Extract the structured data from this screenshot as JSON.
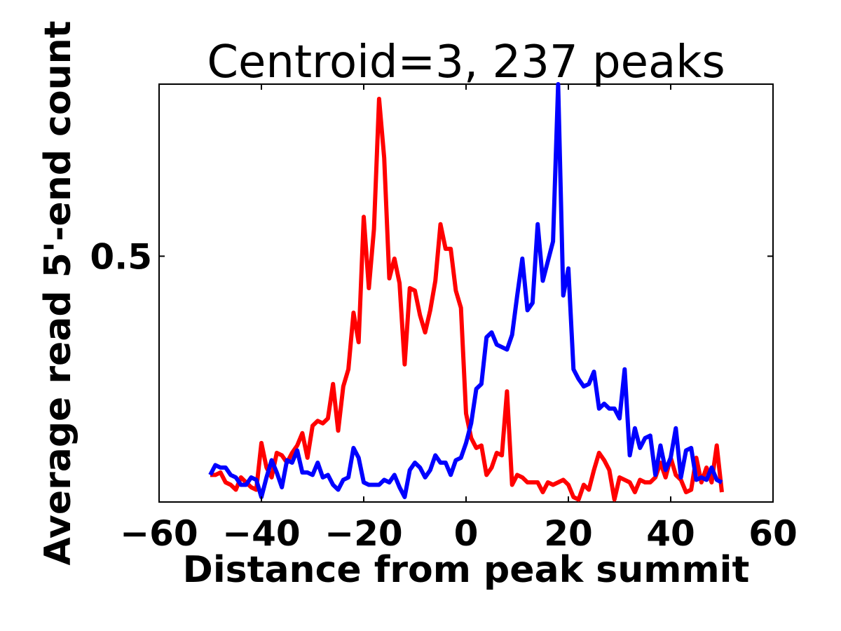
{
  "chart_data": {
    "type": "line",
    "title": "Centroid=3, 237 peaks",
    "xlabel": "Distance from peak summit",
    "ylabel": "Average read 5'-end count",
    "xlim": [
      -60,
      60
    ],
    "ylim": [
      0.0,
      0.85
    ],
    "xticks": [
      -60,
      -40,
      -20,
      0,
      20,
      40,
      60
    ],
    "xtick_labels": [
      "−60",
      "−40",
      "−20",
      "0",
      "20",
      "40",
      "60"
    ],
    "yticks": [
      0.5
    ],
    "ytick_labels": [
      "0.5"
    ],
    "grid": false,
    "x": [
      -50,
      -49,
      -48,
      -47,
      -46,
      -45,
      -44,
      -43,
      -42,
      -41,
      -40,
      -39,
      -38,
      -37,
      -36,
      -35,
      -34,
      -33,
      -32,
      -31,
      -30,
      -29,
      -28,
      -27,
      -26,
      -25,
      -24,
      -23,
      -22,
      -21,
      -20,
      -19,
      -18,
      -17,
      -16,
      -15,
      -14,
      -13,
      -12,
      -11,
      -10,
      -9,
      -8,
      -7,
      -6,
      -5,
      -4,
      -3,
      -2,
      -1,
      0,
      1,
      2,
      3,
      4,
      5,
      6,
      7,
      8,
      9,
      10,
      11,
      12,
      13,
      14,
      15,
      16,
      17,
      18,
      19,
      20,
      21,
      22,
      23,
      24,
      25,
      26,
      27,
      28,
      29,
      30,
      31,
      32,
      33,
      34,
      35,
      36,
      37,
      38,
      39,
      40,
      41,
      42,
      43,
      44,
      45,
      46,
      47,
      48,
      49,
      50
    ],
    "series": [
      {
        "color": "#ff0000",
        "values": [
          0.055,
          0.055,
          0.06,
          0.04,
          0.035,
          0.025,
          0.05,
          0.04,
          0.03,
          0.025,
          0.12,
          0.07,
          0.05,
          0.1,
          0.095,
          0.08,
          0.1,
          0.115,
          0.14,
          0.09,
          0.155,
          0.165,
          0.16,
          0.17,
          0.24,
          0.145,
          0.235,
          0.27,
          0.385,
          0.325,
          0.58,
          0.435,
          0.555,
          0.82,
          0.7,
          0.455,
          0.495,
          0.445,
          0.28,
          0.435,
          0.43,
          0.38,
          0.345,
          0.39,
          0.45,
          0.565,
          0.515,
          0.515,
          0.43,
          0.395,
          0.18,
          0.13,
          0.11,
          0.115,
          0.055,
          0.07,
          0.1,
          0.095,
          0.225,
          0.035,
          0.055,
          0.05,
          0.04,
          0.04,
          0.04,
          0.02,
          0.04,
          0.035,
          0.04,
          0.045,
          0.035,
          0.01,
          0.005,
          0.035,
          0.025,
          0.065,
          0.1,
          0.085,
          0.065,
          0.005,
          0.05,
          0.045,
          0.04,
          0.02,
          0.045,
          0.04,
          0.04,
          0.05,
          0.08,
          0.05,
          0.09,
          0.055,
          0.045,
          0.02,
          0.025,
          0.09,
          0.04,
          0.07,
          0.04,
          0.115,
          0.02
        ]
      },
      {
        "color": "#0000ff",
        "values": [
          0.055,
          0.075,
          0.07,
          0.07,
          0.055,
          0.05,
          0.035,
          0.035,
          0.05,
          0.045,
          0.01,
          0.05,
          0.085,
          0.06,
          0.03,
          0.085,
          0.08,
          0.105,
          0.06,
          0.06,
          0.055,
          0.08,
          0.05,
          0.055,
          0.035,
          0.025,
          0.045,
          0.05,
          0.11,
          0.09,
          0.04,
          0.035,
          0.035,
          0.035,
          0.045,
          0.04,
          0.055,
          0.03,
          0.01,
          0.065,
          0.08,
          0.07,
          0.05,
          0.065,
          0.095,
          0.08,
          0.08,
          0.055,
          0.085,
          0.09,
          0.12,
          0.16,
          0.23,
          0.24,
          0.335,
          0.345,
          0.32,
          0.315,
          0.31,
          0.34,
          0.42,
          0.495,
          0.39,
          0.405,
          0.565,
          0.45,
          0.49,
          0.53,
          0.85,
          0.42,
          0.475,
          0.27,
          0.25,
          0.235,
          0.24,
          0.265,
          0.19,
          0.2,
          0.19,
          0.19,
          0.17,
          0.27,
          0.095,
          0.15,
          0.11,
          0.13,
          0.135,
          0.055,
          0.115,
          0.065,
          0.09,
          0.15,
          0.05,
          0.105,
          0.11,
          0.045,
          0.05,
          0.045,
          0.07,
          0.045,
          0.04
        ]
      }
    ]
  }
}
